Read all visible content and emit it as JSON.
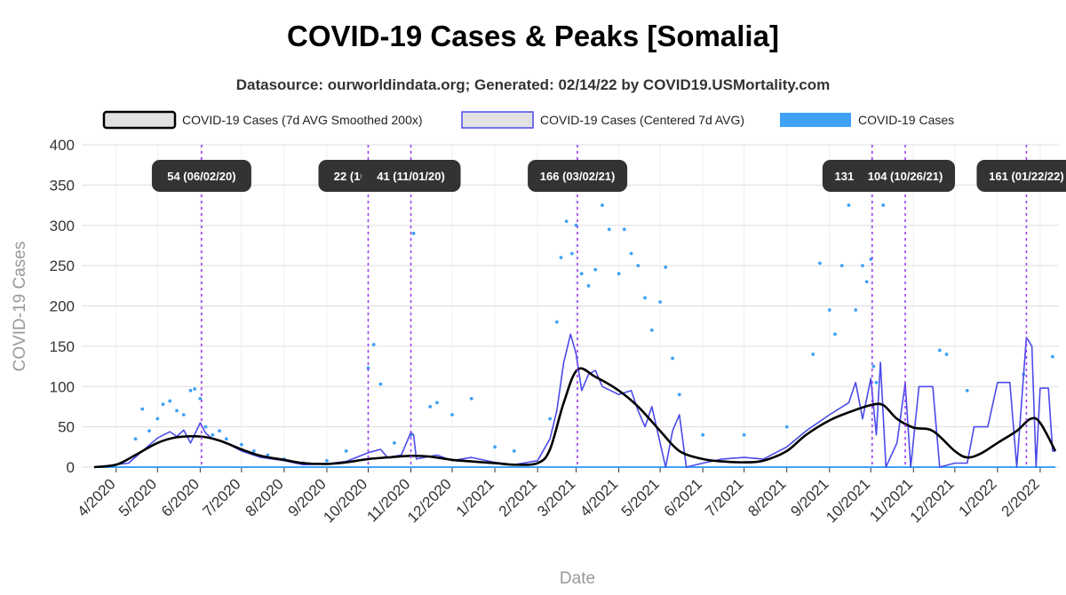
{
  "title": "COVID-19 Cases & Peaks [Somalia]",
  "subtitle": "Datasource: ourworldindata.org; Generated: 02/14/22 by COVID19.USMortality.com",
  "colors": {
    "smoothed": "#000000",
    "centered": "#4b4bea",
    "cases": "#3fa2f7",
    "peak_line": "#9b3ff0",
    "peak_box": "#333333",
    "grid": "#dddddd"
  },
  "chart_data": {
    "type": "line",
    "title": "COVID-19 Cases & Peaks [Somalia]",
    "xlabel": "Date",
    "ylabel": "COVID-19 Cases",
    "ylim": [
      0,
      400
    ],
    "yticks": [
      0,
      50,
      100,
      150,
      200,
      250,
      300,
      350,
      400
    ],
    "xtick_labels": [
      "4/2020",
      "5/2020",
      "6/2020",
      "7/2020",
      "8/2020",
      "9/2020",
      "10/2020",
      "11/2020",
      "12/2020",
      "1/2021",
      "2/2021",
      "3/2021",
      "4/2021",
      "5/2021",
      "6/2021",
      "7/2021",
      "8/2021",
      "9/2021",
      "10/2021",
      "11/2021",
      "12/2021",
      "1/2022",
      "2/2022"
    ],
    "x_start": "2020-03-16",
    "x_end": "2022-02-12",
    "grid": true,
    "legend_position": "top",
    "series": [
      {
        "name": "COVID-19 Cases (7d AVG Smoothed 200x)",
        "style": "smoothed",
        "points": [
          [
            "2020-03-16",
            0
          ],
          [
            "2020-04-01",
            3
          ],
          [
            "2020-04-15",
            15
          ],
          [
            "2020-05-01",
            30
          ],
          [
            "2020-05-15",
            37
          ],
          [
            "2020-06-01",
            38
          ],
          [
            "2020-06-15",
            33
          ],
          [
            "2020-07-01",
            22
          ],
          [
            "2020-07-15",
            14
          ],
          [
            "2020-08-01",
            9
          ],
          [
            "2020-08-15",
            5
          ],
          [
            "2020-09-01",
            4
          ],
          [
            "2020-09-15",
            6
          ],
          [
            "2020-10-01",
            10
          ],
          [
            "2020-10-15",
            12
          ],
          [
            "2020-11-01",
            14
          ],
          [
            "2020-11-15",
            13
          ],
          [
            "2020-12-01",
            9
          ],
          [
            "2020-12-15",
            7
          ],
          [
            "2021-01-01",
            5
          ],
          [
            "2021-01-15",
            3
          ],
          [
            "2021-02-01",
            5
          ],
          [
            "2021-02-10",
            22
          ],
          [
            "2021-02-20",
            80
          ],
          [
            "2021-03-02",
            121
          ],
          [
            "2021-03-15",
            112
          ],
          [
            "2021-04-01",
            95
          ],
          [
            "2021-04-15",
            75
          ],
          [
            "2021-05-01",
            45
          ],
          [
            "2021-05-15",
            20
          ],
          [
            "2021-06-01",
            10
          ],
          [
            "2021-06-15",
            7
          ],
          [
            "2021-07-01",
            6
          ],
          [
            "2021-07-15",
            8
          ],
          [
            "2021-08-01",
            20
          ],
          [
            "2021-08-15",
            40
          ],
          [
            "2021-09-01",
            58
          ],
          [
            "2021-09-15",
            68
          ],
          [
            "2021-10-01",
            77
          ],
          [
            "2021-10-10",
            77
          ],
          [
            "2021-10-20",
            60
          ],
          [
            "2021-11-01",
            49
          ],
          [
            "2021-11-15",
            45
          ],
          [
            "2021-12-01",
            20
          ],
          [
            "2021-12-10",
            12
          ],
          [
            "2021-12-20",
            17
          ],
          [
            "2022-01-01",
            30
          ],
          [
            "2022-01-15",
            45
          ],
          [
            "2022-01-25",
            60
          ],
          [
            "2022-02-01",
            55
          ],
          [
            "2022-02-12",
            20
          ]
        ]
      },
      {
        "name": "COVID-19 Cases (Centered 7d AVG)",
        "style": "centered",
        "points": [
          [
            "2020-03-16",
            0
          ],
          [
            "2020-04-10",
            5
          ],
          [
            "2020-04-20",
            20
          ],
          [
            "2020-05-01",
            36
          ],
          [
            "2020-05-10",
            44
          ],
          [
            "2020-05-15",
            38
          ],
          [
            "2020-05-20",
            46
          ],
          [
            "2020-05-25",
            30
          ],
          [
            "2020-06-01",
            55
          ],
          [
            "2020-06-05",
            42
          ],
          [
            "2020-06-10",
            35
          ],
          [
            "2020-06-20",
            30
          ],
          [
            "2020-07-01",
            20
          ],
          [
            "2020-07-15",
            12
          ],
          [
            "2020-08-01",
            8
          ],
          [
            "2020-08-15",
            3
          ],
          [
            "2020-09-01",
            4
          ],
          [
            "2020-09-15",
            7
          ],
          [
            "2020-10-01",
            18
          ],
          [
            "2020-10-10",
            22
          ],
          [
            "2020-10-15",
            12
          ],
          [
            "2020-10-25",
            15
          ],
          [
            "2020-11-01",
            43
          ],
          [
            "2020-11-03",
            40
          ],
          [
            "2020-11-05",
            10
          ],
          [
            "2020-11-20",
            15
          ],
          [
            "2020-12-01",
            8
          ],
          [
            "2020-12-15",
            12
          ],
          [
            "2021-01-01",
            6
          ],
          [
            "2021-01-15",
            3
          ],
          [
            "2021-02-01",
            8
          ],
          [
            "2021-02-10",
            35
          ],
          [
            "2021-02-15",
            70
          ],
          [
            "2021-02-20",
            130
          ],
          [
            "2021-02-25",
            165
          ],
          [
            "2021-03-01",
            140
          ],
          [
            "2021-03-05",
            95
          ],
          [
            "2021-03-10",
            115
          ],
          [
            "2021-03-15",
            120
          ],
          [
            "2021-03-20",
            100
          ],
          [
            "2021-04-01",
            90
          ],
          [
            "2021-04-10",
            95
          ],
          [
            "2021-04-15",
            70
          ],
          [
            "2021-04-20",
            50
          ],
          [
            "2021-04-25",
            75
          ],
          [
            "2021-05-01",
            30
          ],
          [
            "2021-05-05",
            0
          ],
          [
            "2021-05-10",
            45
          ],
          [
            "2021-05-15",
            65
          ],
          [
            "2021-05-20",
            0
          ],
          [
            "2021-06-01",
            5
          ],
          [
            "2021-06-15",
            10
          ],
          [
            "2021-07-01",
            12
          ],
          [
            "2021-07-15",
            10
          ],
          [
            "2021-08-01",
            25
          ],
          [
            "2021-08-15",
            45
          ],
          [
            "2021-09-01",
            65
          ],
          [
            "2021-09-15",
            80
          ],
          [
            "2021-09-20",
            105
          ],
          [
            "2021-09-25",
            60
          ],
          [
            "2021-10-01",
            110
          ],
          [
            "2021-10-05",
            40
          ],
          [
            "2021-10-08",
            130
          ],
          [
            "2021-10-12",
            0
          ],
          [
            "2021-10-20",
            30
          ],
          [
            "2021-10-26",
            104
          ],
          [
            "2021-10-30",
            0
          ],
          [
            "2021-11-05",
            100
          ],
          [
            "2021-11-15",
            100
          ],
          [
            "2021-11-20",
            0
          ],
          [
            "2021-12-01",
            5
          ],
          [
            "2021-12-10",
            5
          ],
          [
            "2021-12-15",
            50
          ],
          [
            "2021-12-25",
            50
          ],
          [
            "2022-01-01",
            105
          ],
          [
            "2022-01-10",
            105
          ],
          [
            "2022-01-15",
            0
          ],
          [
            "2022-01-22",
            161
          ],
          [
            "2022-01-26",
            150
          ],
          [
            "2022-01-29",
            0
          ],
          [
            "2022-02-01",
            98
          ],
          [
            "2022-02-07",
            98
          ],
          [
            "2022-02-10",
            20
          ],
          [
            "2022-02-12",
            20
          ]
        ]
      },
      {
        "name": "COVID-19 Cases",
        "style": "cases",
        "points": [
          [
            "2020-04-15",
            35
          ],
          [
            "2020-04-20",
            72
          ],
          [
            "2020-04-25",
            45
          ],
          [
            "2020-05-01",
            60
          ],
          [
            "2020-05-05",
            78
          ],
          [
            "2020-05-10",
            82
          ],
          [
            "2020-05-15",
            70
          ],
          [
            "2020-05-20",
            65
          ],
          [
            "2020-05-25",
            95
          ],
          [
            "2020-05-28",
            97
          ],
          [
            "2020-06-01",
            85
          ],
          [
            "2020-06-05",
            50
          ],
          [
            "2020-06-10",
            40
          ],
          [
            "2020-06-15",
            45
          ],
          [
            "2020-06-20",
            35
          ],
          [
            "2020-07-01",
            28
          ],
          [
            "2020-07-10",
            20
          ],
          [
            "2020-07-20",
            15
          ],
          [
            "2020-08-01",
            10
          ],
          [
            "2020-08-15",
            5
          ],
          [
            "2020-09-01",
            8
          ],
          [
            "2020-09-15",
            20
          ],
          [
            "2020-10-01",
            123
          ],
          [
            "2020-10-05",
            152
          ],
          [
            "2020-10-10",
            103
          ],
          [
            "2020-10-20",
            30
          ],
          [
            "2020-11-01",
            40
          ],
          [
            "2020-11-03",
            290
          ],
          [
            "2020-11-15",
            75
          ],
          [
            "2020-11-20",
            80
          ],
          [
            "2020-12-01",
            65
          ],
          [
            "2020-12-15",
            85
          ],
          [
            "2021-01-01",
            25
          ],
          [
            "2021-01-15",
            20
          ],
          [
            "2021-02-10",
            60
          ],
          [
            "2021-02-15",
            180
          ],
          [
            "2021-02-18",
            260
          ],
          [
            "2021-02-22",
            305
          ],
          [
            "2021-02-26",
            265
          ],
          [
            "2021-03-01",
            300
          ],
          [
            "2021-03-05",
            240
          ],
          [
            "2021-03-10",
            225
          ],
          [
            "2021-03-15",
            245
          ],
          [
            "2021-03-20",
            325
          ],
          [
            "2021-03-25",
            295
          ],
          [
            "2021-04-01",
            240
          ],
          [
            "2021-04-05",
            295
          ],
          [
            "2021-04-10",
            265
          ],
          [
            "2021-04-15",
            250
          ],
          [
            "2021-04-20",
            210
          ],
          [
            "2021-04-25",
            170
          ],
          [
            "2021-05-01",
            205
          ],
          [
            "2021-05-05",
            248
          ],
          [
            "2021-05-10",
            135
          ],
          [
            "2021-05-15",
            90
          ],
          [
            "2021-06-01",
            40
          ],
          [
            "2021-07-01",
            40
          ],
          [
            "2021-08-01",
            50
          ],
          [
            "2021-08-20",
            140
          ],
          [
            "2021-08-25",
            253
          ],
          [
            "2021-09-01",
            195
          ],
          [
            "2021-09-05",
            165
          ],
          [
            "2021-09-10",
            250
          ],
          [
            "2021-09-15",
            325
          ],
          [
            "2021-09-20",
            195
          ],
          [
            "2021-09-25",
            250
          ],
          [
            "2021-09-28",
            230
          ],
          [
            "2021-10-01",
            258
          ],
          [
            "2021-10-03",
            125
          ],
          [
            "2021-10-05",
            105
          ],
          [
            "2021-10-10",
            325
          ],
          [
            "2021-11-20",
            145
          ],
          [
            "2021-11-25",
            140
          ],
          [
            "2021-12-10",
            95
          ],
          [
            "2022-01-20",
            115
          ],
          [
            "2022-02-10",
            137
          ]
        ]
      }
    ],
    "peaks": [
      {
        "date": "2020-06-02",
        "value": 54,
        "label": "54 (06/02/20)"
      },
      {
        "date": "2020-10-01",
        "value": 22,
        "label": "22 (10/01/20)"
      },
      {
        "date": "2020-11-01",
        "value": 41,
        "label": "41 (11/01/20)"
      },
      {
        "date": "2021-03-02",
        "value": 166,
        "label": "166 (03/02/21)"
      },
      {
        "date": "2021-10-02",
        "value": 131,
        "label": "131 (10/02/21)"
      },
      {
        "date": "2021-10-26",
        "value": 104,
        "label": "104 (10/26/21)"
      },
      {
        "date": "2022-01-22",
        "value": 161,
        "label": "161 (01/22/22)"
      }
    ]
  }
}
